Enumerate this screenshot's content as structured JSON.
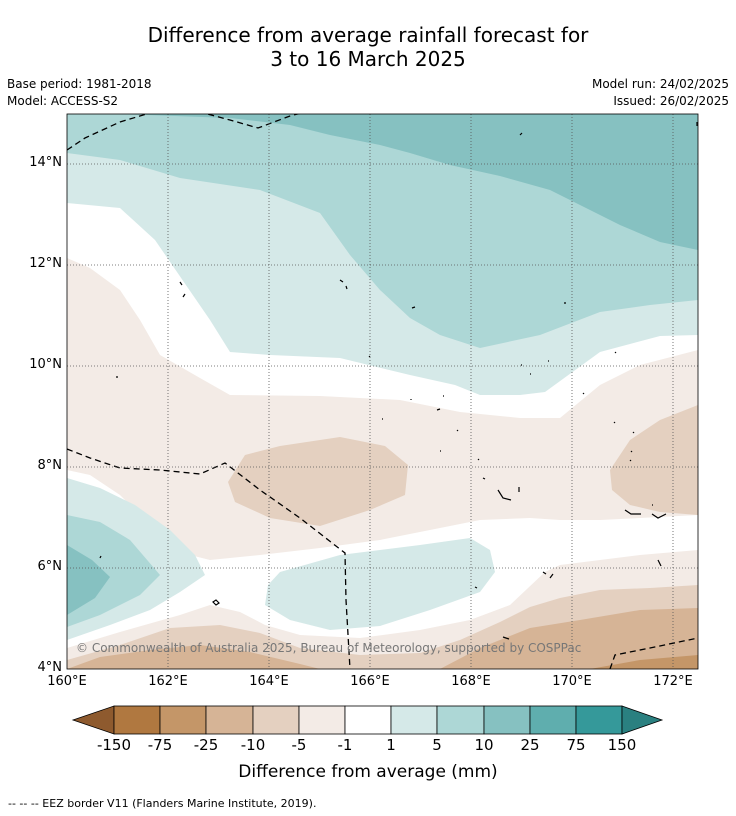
{
  "title": {
    "line1": "Difference from average rainfall forecast for",
    "line2": "3 to 16 March 2025"
  },
  "meta": {
    "base_period": "Base period: 1981-2018",
    "model": "Model: ACCESS-S2",
    "model_run": "Model run: 24/02/2025",
    "issued": "Issued: 26/02/2025"
  },
  "map": {
    "lat_labels": [
      "14°N",
      "12°N",
      "10°N",
      "8°N",
      "6°N",
      "4°N"
    ],
    "lon_labels": [
      "160°E",
      "162°E",
      "164°E",
      "166°E",
      "168°E",
      "170°E",
      "172°E"
    ],
    "copyright": "© Commonwealth of Australia 2025, Bureau of Meteorology, supported by COSPPac"
  },
  "colorbar": {
    "labels": [
      "-150",
      "-75",
      "-25",
      "-10",
      "-5",
      "-1",
      "1",
      "5",
      "10",
      "25",
      "75",
      "150"
    ],
    "colors": [
      "#8e5a2e",
      "#b07840",
      "#c49668",
      "#d6b496",
      "#e4d0c0",
      "#f3ebe6",
      "#ffffff",
      "#d5e9e8",
      "#add7d6",
      "#86c1c1",
      "#5faeae",
      "#35999a",
      "#2a8080"
    ],
    "title": "Difference from average (mm)"
  },
  "footer": "--  --  -- EEZ border V11 (Flanders Marine Institute, 2019)."
}
